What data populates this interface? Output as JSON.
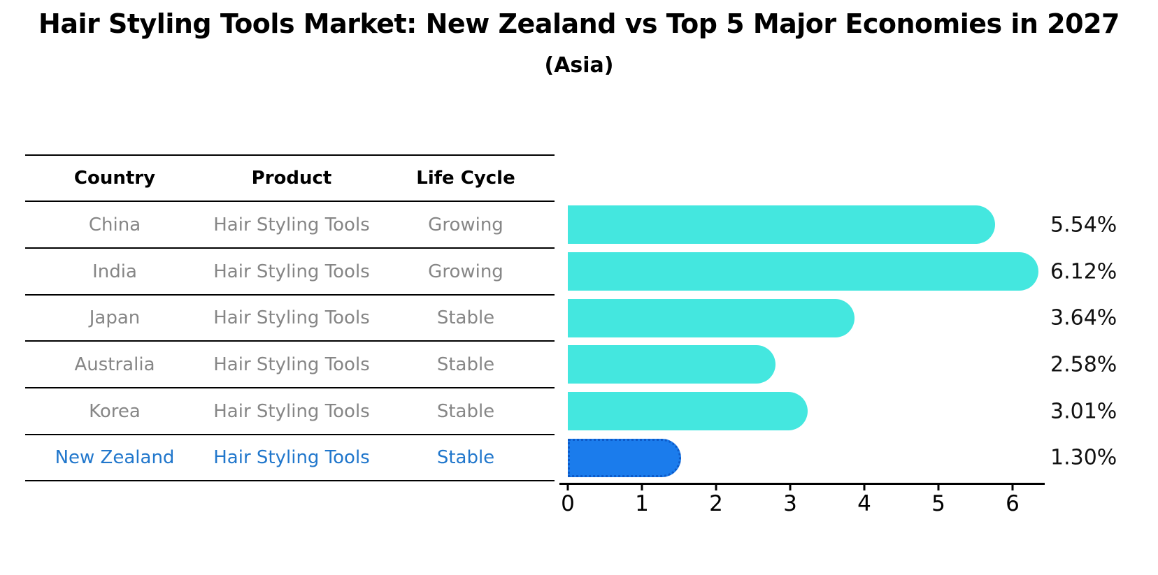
{
  "title": "Hair Styling Tools Market: New Zealand vs Top 5 Major Economies in 2027",
  "subtitle": "(Asia)",
  "table": {
    "headers": {
      "country": "Country",
      "product": "Product",
      "life_cycle": "Life Cycle"
    },
    "rows": [
      {
        "country": "China",
        "product": "Hair Styling Tools",
        "life_cycle": "Growing"
      },
      {
        "country": "India",
        "product": "Hair Styling Tools",
        "life_cycle": "Growing"
      },
      {
        "country": "Japan",
        "product": "Hair Styling Tools",
        "life_cycle": "Stable"
      },
      {
        "country": "Australia",
        "product": "Hair Styling Tools",
        "life_cycle": "Stable"
      },
      {
        "country": "Korea",
        "product": "Hair Styling Tools",
        "life_cycle": "Stable"
      },
      {
        "country": "New Zealand",
        "product": "Hair Styling Tools",
        "life_cycle": "Stable"
      }
    ]
  },
  "chart_data": {
    "type": "bar",
    "orientation": "horizontal",
    "title": "Hair Styling Tools Market: New Zealand vs Top 5 Major Economies in 2027",
    "subtitle": "(Asia)",
    "categories": [
      "China",
      "India",
      "Japan",
      "Australia",
      "Korea",
      "New Zealand"
    ],
    "values": [
      5.54,
      6.12,
      3.64,
      2.58,
      3.01,
      1.3
    ],
    "value_labels": [
      "5.54%",
      "6.12%",
      "3.64%",
      "2.58%",
      "3.01%",
      "1.30%"
    ],
    "xlim": [
      0,
      6.5
    ],
    "xticks": [
      0,
      1,
      2,
      3,
      4,
      5,
      6
    ],
    "grid": false,
    "legend": false,
    "highlight_category": "New Zealand"
  },
  "colors": {
    "bar": "#44E7DF",
    "highlight_bar": "#1B7CEC",
    "highlight_border": "#0D5AC8",
    "highlight_text": "#2177CC",
    "table_text": "#868686"
  }
}
